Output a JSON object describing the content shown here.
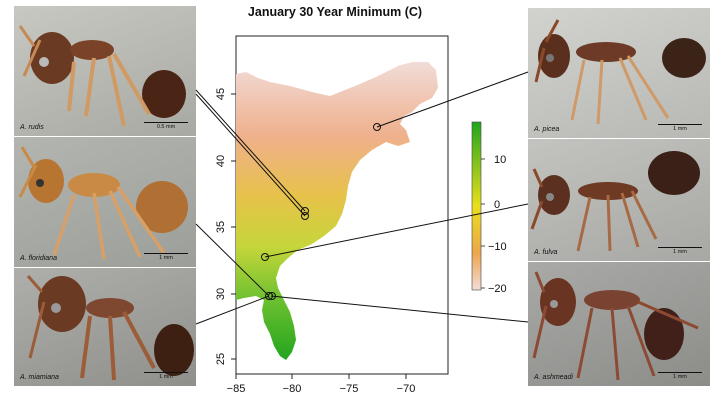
{
  "title": "January 30 Year Minimum (C)",
  "map": {
    "x_ticks": [
      "−85",
      "−80",
      "−75",
      "−70"
    ],
    "y_ticks": [
      "25",
      "30",
      "35",
      "40",
      "45"
    ]
  },
  "colorbar": {
    "ticks": [
      "10",
      "0",
      "−10",
      "−20"
    ],
    "range": [
      -22,
      19
    ],
    "colors": {
      "warm": "#22a51e",
      "mid": "#e8df1c",
      "cool": "#f2dcd9"
    }
  },
  "photos": [
    {
      "species": "A. rudis",
      "scale": "0.5 mm",
      "site": "south-appalachian"
    },
    {
      "species": "A. floridiana",
      "scale": "1 mm",
      "site": "north-florida"
    },
    {
      "species": "A. miamiana",
      "scale": "1 mm",
      "site": "north-florida"
    },
    {
      "species": "A. picea",
      "scale": "1 mm",
      "site": "new-england"
    },
    {
      "species": "A. fulva",
      "scale": "1 mm",
      "site": "georgia"
    },
    {
      "species": "A. ashmeadi",
      "scale": "1 mm",
      "site": "north-florida"
    }
  ]
}
